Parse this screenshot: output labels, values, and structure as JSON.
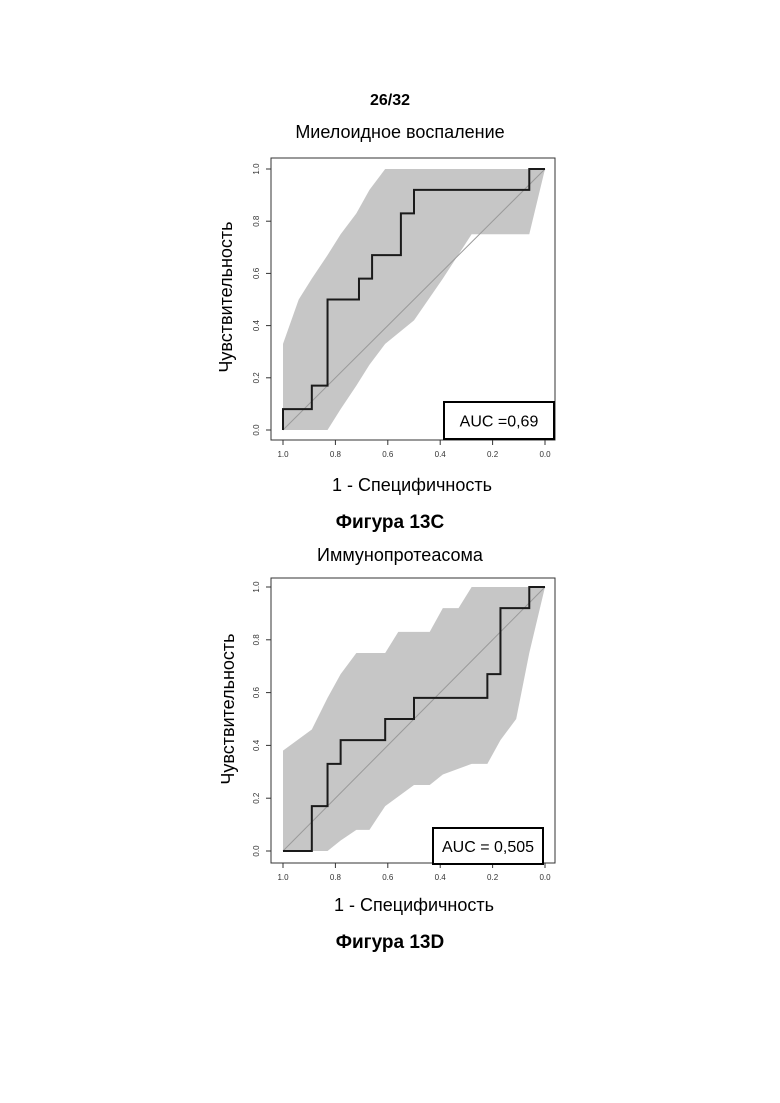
{
  "page_number": "26/32",
  "figures": [
    {
      "caption": "Фигура 13C",
      "chart_data": {
        "type": "line",
        "title": "Миелоидное воспаление",
        "xlabel": "1 - Специфичность",
        "ylabel": "Чувствительность",
        "xlim": [
          1.0,
          0.0
        ],
        "ylim": [
          0.0,
          1.0
        ],
        "x_reversed": true,
        "xticks": [
          "1.0",
          "0.8",
          "0.6",
          "0.4",
          "0.2",
          "0.0"
        ],
        "yticks": [
          "0.0",
          "0.2",
          "0.4",
          "0.6",
          "0.8",
          "1.0"
        ],
        "annotation": "AUC =0,69",
        "series": [
          {
            "role": "roc-step-curve",
            "x": [
              1.0,
              1.0,
              0.89,
              0.89,
              0.83,
              0.83,
              0.71,
              0.71,
              0.66,
              0.66,
              0.55,
              0.55,
              0.5,
              0.5,
              0.06,
              0.06,
              0.0
            ],
            "y": [
              0.0,
              0.08,
              0.08,
              0.17,
              0.17,
              0.5,
              0.5,
              0.58,
              0.58,
              0.67,
              0.67,
              0.83,
              0.83,
              0.92,
              0.92,
              1.0,
              1.0
            ]
          },
          {
            "role": "confidence-band-upper",
            "x": [
              1.0,
              1.0,
              0.94,
              0.89,
              0.83,
              0.78,
              0.72,
              0.67,
              0.61,
              0.5,
              0.0
            ],
            "y": [
              0.0,
              0.33,
              0.5,
              0.58,
              0.67,
              0.75,
              0.83,
              0.92,
              1.0,
              1.0,
              1.0
            ]
          },
          {
            "role": "confidence-band-lower",
            "x": [
              1.0,
              0.83,
              0.78,
              0.72,
              0.67,
              0.61,
              0.5,
              0.39,
              0.28,
              0.17,
              0.06,
              0.0
            ],
            "y": [
              0.0,
              0.0,
              0.08,
              0.17,
              0.25,
              0.33,
              0.42,
              0.58,
              0.75,
              0.75,
              0.75,
              1.0
            ]
          },
          {
            "role": "chance-diagonal",
            "x": [
              1.0,
              0.0
            ],
            "y": [
              0.0,
              1.0
            ]
          }
        ]
      }
    },
    {
      "caption": "Фигура 13D",
      "chart_data": {
        "type": "line",
        "title": "Иммунопротеасома",
        "xlabel": "1 - Специфичность",
        "ylabel": "Чувствительность",
        "xlim": [
          1.0,
          0.0
        ],
        "ylim": [
          0.0,
          1.0
        ],
        "x_reversed": true,
        "xticks": [
          "1.0",
          "0.8",
          "0.6",
          "0.4",
          "0.2",
          "0.0"
        ],
        "yticks": [
          "0.0",
          "0.2",
          "0.4",
          "0.6",
          "0.8",
          "1.0"
        ],
        "annotation": "AUC = 0,505",
        "series": [
          {
            "role": "roc-step-curve",
            "x": [
              1.0,
              0.89,
              0.89,
              0.83,
              0.83,
              0.78,
              0.78,
              0.61,
              0.61,
              0.5,
              0.5,
              0.22,
              0.22,
              0.17,
              0.17,
              0.06,
              0.06,
              0.0
            ],
            "y": [
              0.0,
              0.0,
              0.17,
              0.17,
              0.33,
              0.33,
              0.42,
              0.42,
              0.5,
              0.5,
              0.58,
              0.58,
              0.67,
              0.67,
              0.92,
              0.92,
              1.0,
              1.0
            ]
          },
          {
            "role": "confidence-band-upper",
            "x": [
              1.0,
              1.0,
              0.89,
              0.83,
              0.78,
              0.72,
              0.67,
              0.61,
              0.56,
              0.5,
              0.44,
              0.39,
              0.33,
              0.28,
              0.22,
              0.17,
              0.0
            ],
            "y": [
              0.0,
              0.38,
              0.46,
              0.58,
              0.67,
              0.75,
              0.75,
              0.75,
              0.83,
              0.83,
              0.83,
              0.92,
              0.92,
              1.0,
              1.0,
              1.0,
              1.0
            ]
          },
          {
            "role": "confidence-band-lower",
            "x": [
              1.0,
              0.83,
              0.78,
              0.72,
              0.67,
              0.61,
              0.5,
              0.44,
              0.39,
              0.28,
              0.22,
              0.17,
              0.11,
              0.06,
              0.0
            ],
            "y": [
              0.0,
              0.0,
              0.04,
              0.08,
              0.08,
              0.17,
              0.25,
              0.25,
              0.29,
              0.33,
              0.33,
              0.42,
              0.5,
              0.75,
              1.0
            ]
          },
          {
            "role": "chance-diagonal",
            "x": [
              1.0,
              0.0
            ],
            "y": [
              0.0,
              1.0
            ]
          }
        ]
      }
    }
  ]
}
